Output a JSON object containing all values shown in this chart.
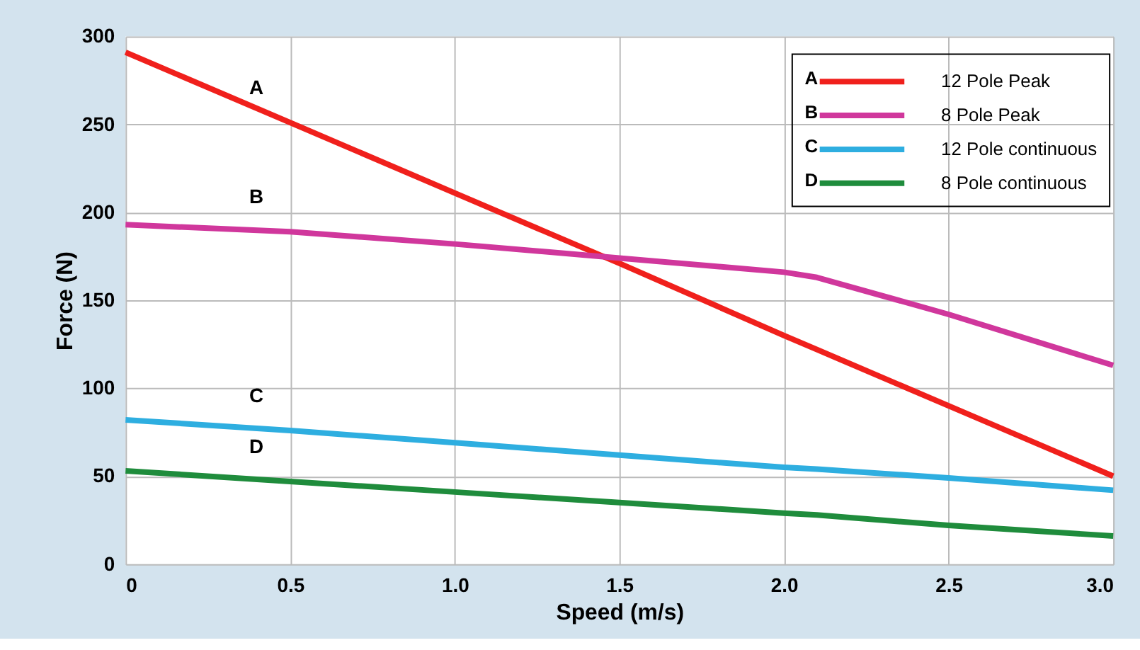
{
  "chart_data": {
    "type": "line",
    "xlabel": "Speed (m/s)",
    "ylabel": "Force (N)",
    "xlim": [
      0,
      3
    ],
    "xticks": [
      {
        "value": 0,
        "label": "0"
      },
      0.5,
      {
        "value": 1,
        "label": "1.0"
      },
      1.5,
      {
        "value": 2,
        "label": "2.0"
      },
      2.5,
      {
        "value": 3,
        "label": "3.0"
      }
    ],
    "ylim": [
      0,
      300
    ],
    "yticks": [
      0,
      50,
      100,
      150,
      200,
      250,
      300
    ],
    "grid": true,
    "legend": "top right",
    "marker": "none",
    "line_style": "solid",
    "x": [
      0,
      0.5,
      1,
      1.5,
      2,
      2.1,
      2.5,
      3
    ],
    "series": [
      {
        "name": "12 Pole Peak",
        "color": "#f0201c",
        "values": [
          291,
          251,
          211,
          171,
          130,
          122,
          90,
          50
        ]
      },
      {
        "name": "8 Pole Peak",
        "color": "#d0379c",
        "values": [
          193,
          189,
          182,
          174,
          166,
          163,
          142,
          113
        ]
      },
      {
        "name": "12 Pole continuous",
        "color": "#2eaee0",
        "values": [
          82,
          76,
          69,
          62,
          55,
          54,
          49,
          42
        ]
      },
      {
        "name": "8 Pole continuous",
        "color": "#1f8c3c",
        "values": [
          53,
          47,
          41,
          35,
          29,
          28,
          22,
          16
        ]
      }
    ],
    "annotations": [
      "A",
      "B",
      "C",
      "D"
    ]
  }
}
